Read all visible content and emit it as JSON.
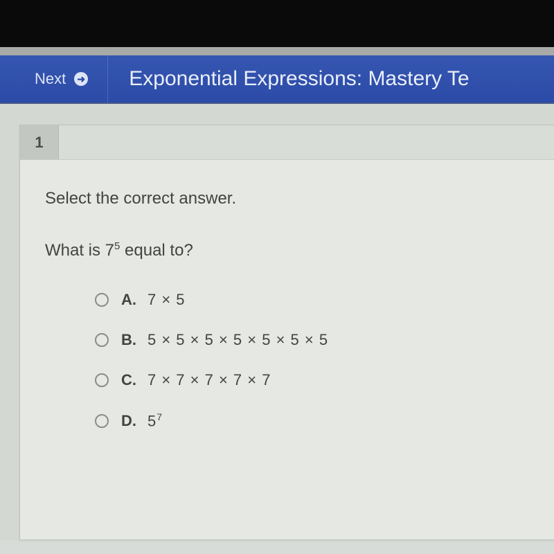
{
  "colors": {
    "top_black": "#0a0a0a",
    "gray_strip": "#a8aaa8",
    "blue_bar_top": "#3556b0",
    "blue_bar_bottom": "#2c4ba8",
    "blue_text": "#eaeef9",
    "page_bg": "#d4d8d3",
    "card_bg": "#e5e8e3",
    "tab_bg": "#c3c7c1",
    "tab_rest_bg": "#d9ddd7",
    "text": "#424441",
    "radio_border": "#8a8c88"
  },
  "header": {
    "next_label": "Next",
    "arrow_glyph": "➜",
    "title": "Exponential Expressions: Mastery Te"
  },
  "question": {
    "tab_number": "1",
    "instruction": "Select the correct answer.",
    "prompt_prefix": "What is 7",
    "prompt_exponent": "5",
    "prompt_suffix": " equal to?",
    "options": [
      {
        "letter": "A.",
        "text": "7 × 5"
      },
      {
        "letter": "B.",
        "text": "5 × 5 × 5 × 5 × 5 × 5 × 5"
      },
      {
        "letter": "C.",
        "text": "7 × 7 × 7 × 7 × 7"
      },
      {
        "letter": "D.",
        "base": "5",
        "exp": "7"
      }
    ]
  },
  "typography": {
    "title_fontsize": 30,
    "instruction_fontsize": 24,
    "prompt_fontsize": 24,
    "option_fontsize": 22,
    "tab_fontsize": 22
  }
}
